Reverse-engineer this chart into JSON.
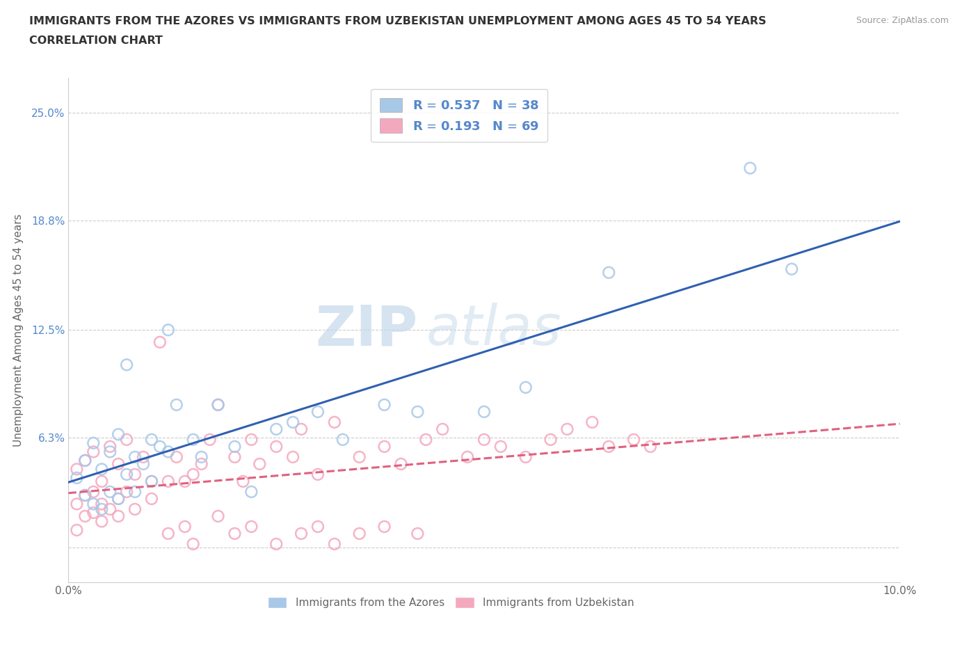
{
  "title_line1": "IMMIGRANTS FROM THE AZORES VS IMMIGRANTS FROM UZBEKISTAN UNEMPLOYMENT AMONG AGES 45 TO 54 YEARS",
  "title_line2": "CORRELATION CHART",
  "source": "Source: ZipAtlas.com",
  "ylabel": "Unemployment Among Ages 45 to 54 years",
  "xlim": [
    0.0,
    0.1
  ],
  "ylim": [
    -0.02,
    0.27
  ],
  "ytick_positions": [
    0.0,
    0.063,
    0.125,
    0.188,
    0.25
  ],
  "ytick_labels": [
    "",
    "6.3%",
    "12.5%",
    "18.8%",
    "25.0%"
  ],
  "color_azores": "#a8c8e8",
  "color_uzbek": "#f4a8be",
  "color_trend_azores": "#3060b0",
  "color_trend_uzbek": "#e06080",
  "watermark_zip": "ZIP",
  "watermark_atlas": "atlas",
  "azores_x": [
    0.001,
    0.002,
    0.002,
    0.003,
    0.003,
    0.004,
    0.004,
    0.005,
    0.005,
    0.006,
    0.006,
    0.007,
    0.007,
    0.008,
    0.008,
    0.009,
    0.01,
    0.01,
    0.011,
    0.012,
    0.012,
    0.013,
    0.015,
    0.016,
    0.018,
    0.02,
    0.022,
    0.025,
    0.027,
    0.03,
    0.033,
    0.038,
    0.042,
    0.05,
    0.055,
    0.065,
    0.082,
    0.087
  ],
  "azores_y": [
    0.04,
    0.05,
    0.03,
    0.06,
    0.025,
    0.045,
    0.022,
    0.055,
    0.032,
    0.065,
    0.028,
    0.105,
    0.042,
    0.032,
    0.052,
    0.048,
    0.038,
    0.062,
    0.058,
    0.055,
    0.125,
    0.082,
    0.062,
    0.052,
    0.082,
    0.058,
    0.032,
    0.068,
    0.072,
    0.078,
    0.062,
    0.082,
    0.078,
    0.078,
    0.092,
    0.158,
    0.218,
    0.16
  ],
  "uzbek_x": [
    0.001,
    0.001,
    0.001,
    0.002,
    0.002,
    0.002,
    0.003,
    0.003,
    0.003,
    0.004,
    0.004,
    0.004,
    0.005,
    0.005,
    0.006,
    0.006,
    0.006,
    0.007,
    0.007,
    0.008,
    0.008,
    0.009,
    0.01,
    0.01,
    0.011,
    0.012,
    0.013,
    0.014,
    0.015,
    0.016,
    0.017,
    0.018,
    0.02,
    0.021,
    0.022,
    0.023,
    0.025,
    0.027,
    0.028,
    0.03,
    0.032,
    0.035,
    0.038,
    0.04,
    0.043,
    0.045,
    0.048,
    0.05,
    0.052,
    0.055,
    0.058,
    0.06,
    0.063,
    0.065,
    0.068,
    0.07,
    0.012,
    0.014,
    0.015,
    0.018,
    0.02,
    0.022,
    0.025,
    0.028,
    0.03,
    0.032,
    0.035,
    0.038,
    0.042
  ],
  "uzbek_y": [
    0.045,
    0.025,
    0.01,
    0.05,
    0.018,
    0.03,
    0.055,
    0.032,
    0.02,
    0.038,
    0.025,
    0.015,
    0.058,
    0.022,
    0.048,
    0.028,
    0.018,
    0.062,
    0.032,
    0.042,
    0.022,
    0.052,
    0.038,
    0.028,
    0.118,
    0.038,
    0.052,
    0.038,
    0.042,
    0.048,
    0.062,
    0.082,
    0.052,
    0.038,
    0.062,
    0.048,
    0.058,
    0.052,
    0.068,
    0.042,
    0.072,
    0.052,
    0.058,
    0.048,
    0.062,
    0.068,
    0.052,
    0.062,
    0.058,
    0.052,
    0.062,
    0.068,
    0.072,
    0.058,
    0.062,
    0.058,
    0.008,
    0.012,
    0.002,
    0.018,
    0.008,
    0.012,
    0.002,
    0.008,
    0.012,
    0.002,
    0.008,
    0.012,
    0.008
  ]
}
